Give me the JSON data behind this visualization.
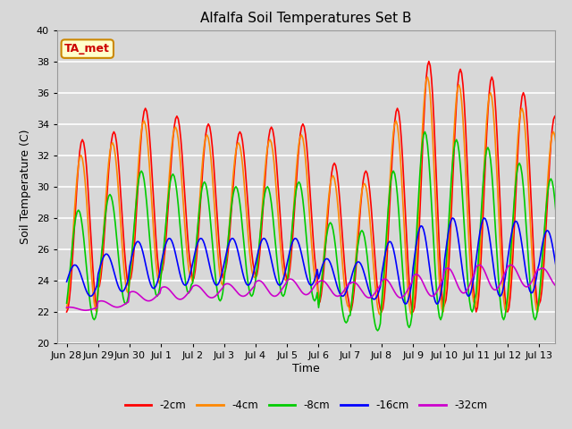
{
  "title": "Alfalfa Soil Temperatures Set B",
  "xlabel": "Time",
  "ylabel": "Soil Temperature (C)",
  "ylim": [
    20,
    40
  ],
  "bg_color": "#d8d8d8",
  "plot_bg": "#d8d8d8",
  "grid_color": "#ffffff",
  "annotation_text": "TA_met",
  "annotation_color": "#cc0000",
  "annotation_bg": "#ffffcc",
  "annotation_edge": "#cc8800",
  "tick_labels": [
    "Jun 28",
    "Jun 29",
    "Jun 30",
    "Jul 1",
    "Jul 2",
    "Jul 3",
    "Jul 4",
    "Jul 5",
    "Jul 6",
    "Jul 7",
    "Jul 8",
    "Jul 9",
    "Jul 10",
    "Jul 11",
    "Jul 12",
    "Jul 13"
  ],
  "series_labels": [
    "-2cm",
    "-4cm",
    "-8cm",
    "-16cm",
    "-32cm"
  ],
  "series_colors": [
    "#ff0000",
    "#ff8800",
    "#00cc00",
    "#0000ff",
    "#cc00cc"
  ],
  "n_per_day": 24,
  "n_days": 16,
  "base_2": [
    27.5,
    28.5,
    29.5,
    29.5,
    29.0,
    29.0,
    29.0,
    29.0,
    27.0,
    26.5,
    28.5,
    30.0,
    30.0,
    29.5,
    29.0,
    28.5
  ],
  "amp_2": [
    5.5,
    5.0,
    5.5,
    5.0,
    5.0,
    4.5,
    4.8,
    5.0,
    4.5,
    4.5,
    6.5,
    8.0,
    7.5,
    7.5,
    7.0,
    6.0
  ],
  "base_4": [
    27.0,
    28.0,
    29.0,
    29.0,
    28.5,
    28.5,
    28.5,
    28.5,
    26.5,
    26.0,
    28.0,
    29.5,
    29.5,
    29.0,
    28.5,
    28.0
  ],
  "amp_4": [
    5.0,
    4.8,
    5.2,
    4.8,
    4.8,
    4.3,
    4.5,
    4.8,
    4.2,
    4.2,
    6.2,
    7.5,
    7.0,
    7.0,
    6.5,
    5.5
  ],
  "base_8": [
    25.0,
    26.0,
    27.0,
    27.0,
    26.5,
    26.5,
    26.5,
    26.5,
    24.5,
    24.0,
    26.0,
    27.5,
    27.5,
    27.0,
    26.5,
    26.0
  ],
  "amp_8": [
    3.5,
    3.5,
    4.0,
    3.8,
    3.8,
    3.5,
    3.5,
    3.8,
    3.2,
    3.2,
    5.0,
    6.0,
    5.5,
    5.5,
    5.0,
    4.5
  ],
  "base_16": [
    24.0,
    24.5,
    25.0,
    25.2,
    25.2,
    25.2,
    25.2,
    25.2,
    24.2,
    24.0,
    24.5,
    25.0,
    25.5,
    25.5,
    25.5,
    25.2
  ],
  "amp_16": [
    1.0,
    1.2,
    1.5,
    1.5,
    1.5,
    1.5,
    1.5,
    1.5,
    1.2,
    1.2,
    2.0,
    2.5,
    2.5,
    2.5,
    2.3,
    2.0
  ],
  "base_32": [
    22.2,
    22.5,
    23.0,
    23.2,
    23.3,
    23.4,
    23.5,
    23.6,
    23.5,
    23.4,
    23.5,
    23.7,
    24.0,
    24.2,
    24.3,
    24.2
  ],
  "amp_32": [
    0.1,
    0.2,
    0.3,
    0.4,
    0.4,
    0.4,
    0.5,
    0.5,
    0.5,
    0.5,
    0.6,
    0.7,
    0.8,
    0.8,
    0.7,
    0.6
  ],
  "phase_2": 0.0,
  "phase_4": 0.3,
  "phase_8": 0.8,
  "phase_16": 1.5,
  "phase_32": 2.5
}
